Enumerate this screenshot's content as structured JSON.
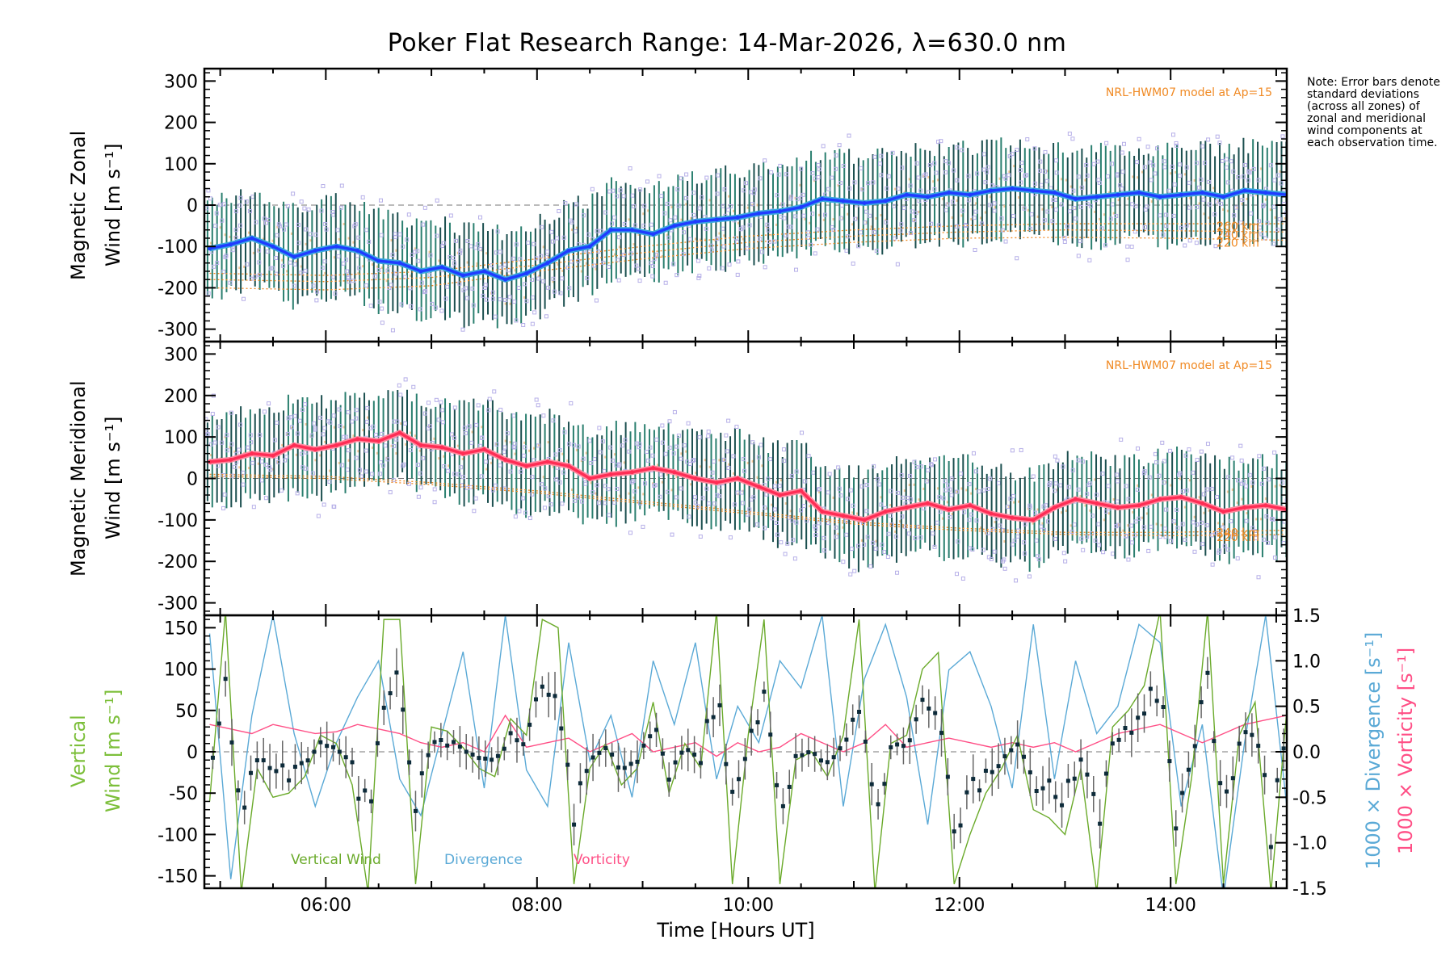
{
  "title": "Poker Flat Research Range: 14-Mar-2026, λ=630.0 nm",
  "note": "Note: Error bars denote standard deviations (across all zones) of zonal and meridional wind components at each observation time.",
  "x_axis": {
    "label": "Time [Hours UT]",
    "range_hours": [
      4.85,
      15.1
    ],
    "ticks": [
      {
        "h": 6,
        "label": "06:00"
      },
      {
        "h": 8,
        "label": "08:00"
      },
      {
        "h": 10,
        "label": "10:00"
      },
      {
        "h": 12,
        "label": "12:00"
      },
      {
        "h": 14,
        "label": "14:00"
      }
    ]
  },
  "colors": {
    "zonal": "#1f3cff",
    "zonal_outline": "#39a8e0",
    "meridional": "#ff2d55",
    "meridional_outline": "#ff8aa0",
    "vertical": "#6aaa2a",
    "divergence": "#5aa9d6",
    "vorticity": "#ff4f86",
    "model": "#f08a24",
    "scatter": "#b7b0e8",
    "errorbar": "#1b4f4f"
  },
  "chart_data": [
    {
      "type": "line",
      "name": "zonal",
      "ylabel_line1": "Magnetic Zonal",
      "ylabel_line2": "Wind [m s⁻¹]",
      "ylim": [
        -330,
        330
      ],
      "yticks": [
        -300,
        -200,
        -100,
        0,
        100,
        200,
        300
      ],
      "model_label": "NRL-HWM07 model at Ap=15",
      "model_altitudes": [
        "260 km",
        "240 km",
        "220 km"
      ],
      "series": [
        {
          "name": "Magnetic Zonal Wind",
          "x": [
            4.9,
            5.1,
            5.3,
            5.5,
            5.7,
            5.9,
            6.1,
            6.3,
            6.5,
            6.7,
            6.9,
            7.1,
            7.3,
            7.5,
            7.7,
            7.9,
            8.1,
            8.3,
            8.5,
            8.7,
            8.9,
            9.1,
            9.3,
            9.5,
            9.7,
            9.9,
            10.1,
            10.3,
            10.5,
            10.7,
            10.9,
            11.1,
            11.3,
            11.5,
            11.7,
            11.9,
            12.1,
            12.3,
            12.5,
            12.7,
            12.9,
            13.1,
            13.3,
            13.5,
            13.7,
            13.9,
            14.1,
            14.3,
            14.5,
            14.7,
            14.9,
            15.1
          ],
          "y": [
            -105,
            -95,
            -80,
            -100,
            -125,
            -110,
            -100,
            -110,
            -135,
            -140,
            -160,
            -150,
            -170,
            -160,
            -180,
            -165,
            -140,
            -110,
            -100,
            -60,
            -60,
            -70,
            -50,
            -40,
            -35,
            -30,
            -20,
            -15,
            -5,
            15,
            10,
            5,
            10,
            25,
            20,
            30,
            25,
            35,
            40,
            35,
            30,
            15,
            20,
            25,
            30,
            20,
            25,
            30,
            20,
            35,
            30,
            25
          ]
        },
        {
          "name": "HWM 260 km",
          "x": [
            4.9,
            6,
            7,
            8,
            9,
            10,
            11,
            12,
            13,
            14,
            15.1
          ],
          "y": [
            -165,
            -170,
            -160,
            -130,
            -100,
            -75,
            -60,
            -50,
            -45,
            -45,
            -45
          ]
        },
        {
          "name": "HWM 240 km",
          "x": [
            4.9,
            6,
            7,
            8,
            9,
            10,
            11,
            12,
            13,
            14,
            15.1
          ],
          "y": [
            -180,
            -185,
            -175,
            -145,
            -115,
            -90,
            -75,
            -65,
            -60,
            -62,
            -65
          ]
        },
        {
          "name": "HWM 220 km",
          "x": [
            4.9,
            6,
            7,
            8,
            9,
            10,
            11,
            12,
            13,
            14,
            15.1
          ],
          "y": [
            -200,
            -205,
            -195,
            -160,
            -130,
            -105,
            -90,
            -80,
            -78,
            -80,
            -85
          ]
        }
      ]
    },
    {
      "type": "line",
      "name": "meridional",
      "ylabel_line1": "Magnetic Meridional",
      "ylabel_line2": "Wind [m s⁻¹]",
      "ylim": [
        -330,
        330
      ],
      "yticks": [
        -300,
        -200,
        -100,
        0,
        100,
        200,
        300
      ],
      "model_label": "NRL-HWM07 model at Ap=15",
      "model_altitudes": [
        "240 km",
        "220 km"
      ],
      "series": [
        {
          "name": "Magnetic Meridional Wind",
          "x": [
            4.9,
            5.1,
            5.3,
            5.5,
            5.7,
            5.9,
            6.1,
            6.3,
            6.5,
            6.7,
            6.9,
            7.1,
            7.3,
            7.5,
            7.7,
            7.9,
            8.1,
            8.3,
            8.5,
            8.7,
            8.9,
            9.1,
            9.3,
            9.5,
            9.7,
            9.9,
            10.1,
            10.3,
            10.5,
            10.7,
            10.9,
            11.1,
            11.3,
            11.5,
            11.7,
            11.9,
            12.1,
            12.3,
            12.5,
            12.7,
            12.9,
            13.1,
            13.3,
            13.5,
            13.7,
            13.9,
            14.1,
            14.3,
            14.5,
            14.7,
            14.9,
            15.1
          ],
          "y": [
            40,
            45,
            60,
            55,
            80,
            70,
            80,
            95,
            90,
            110,
            80,
            75,
            60,
            70,
            45,
            30,
            40,
            30,
            0,
            10,
            15,
            25,
            15,
            0,
            -10,
            0,
            -20,
            -40,
            -30,
            -80,
            -90,
            -100,
            -80,
            -70,
            -60,
            -75,
            -65,
            -85,
            -95,
            -100,
            -70,
            -50,
            -60,
            -70,
            -65,
            -50,
            -45,
            -60,
            -80,
            -70,
            -65,
            -75
          ]
        },
        {
          "name": "HWM 240 km",
          "x": [
            4.9,
            6,
            7,
            8,
            9,
            10,
            11,
            12,
            13,
            14,
            15.1
          ],
          "y": [
            10,
            5,
            -10,
            -30,
            -55,
            -80,
            -105,
            -120,
            -130,
            -130,
            -125
          ]
        },
        {
          "name": "HWM 220 km",
          "x": [
            4.9,
            6,
            7,
            8,
            9,
            10,
            11,
            12,
            13,
            14,
            15.1
          ],
          "y": [
            5,
            0,
            -15,
            -35,
            -60,
            -85,
            -110,
            -125,
            -135,
            -138,
            -135
          ]
        }
      ]
    },
    {
      "type": "line",
      "name": "vertical",
      "ylabel_line1": "Vertical",
      "ylabel_line2": "Wind [m s⁻¹]",
      "ylim": [
        -165,
        165
      ],
      "yticks": [
        -150,
        -100,
        -50,
        0,
        50,
        100,
        150
      ],
      "right_axis": {
        "ylim": [
          -1.5,
          1.5
        ],
        "yticks": [
          -1.5,
          -1.0,
          -0.5,
          0.0,
          0.5,
          1.0,
          1.5
        ],
        "label_divergence": "1000 × Divergence [s⁻¹]",
        "label_vorticity": "1000 × Vorticity [s⁻¹]"
      },
      "legend": [
        "Vertical Wind",
        "Divergence",
        "Vorticity"
      ],
      "series": [
        {
          "name": "Vertical Wind",
          "x": [
            4.9,
            5.05,
            5.2,
            5.35,
            5.5,
            5.65,
            5.8,
            5.95,
            6.1,
            6.25,
            6.4,
            6.55,
            6.7,
            6.85,
            7.0,
            7.15,
            7.3,
            7.45,
            7.6,
            7.75,
            7.9,
            8.05,
            8.2,
            8.35,
            8.5,
            8.65,
            8.8,
            8.95,
            9.1,
            9.25,
            9.4,
            9.55,
            9.7,
            9.85,
            10.0,
            10.15,
            10.3,
            10.45,
            10.6,
            10.75,
            10.9,
            11.05,
            11.2,
            11.35,
            11.5,
            11.65,
            11.8,
            11.95,
            12.1,
            12.25,
            12.4,
            12.55,
            12.7,
            12.85,
            13.0,
            13.15,
            13.3,
            13.45,
            13.6,
            13.75,
            13.9,
            14.05,
            14.2,
            14.35,
            14.5,
            14.65,
            14.8,
            14.95,
            15.1
          ],
          "y": [
            -60,
            170,
            -170,
            -20,
            -55,
            -50,
            -30,
            20,
            10,
            -40,
            -170,
            160,
            160,
            -160,
            30,
            25,
            5,
            -20,
            -30,
            40,
            20,
            160,
            150,
            -160,
            -20,
            10,
            -40,
            -20,
            60,
            -50,
            10,
            -20,
            170,
            -160,
            20,
            160,
            -160,
            -10,
            0,
            -30,
            20,
            160,
            -170,
            10,
            20,
            100,
            120,
            -160,
            -100,
            -50,
            -20,
            20,
            -70,
            -80,
            -100,
            -20,
            -170,
            30,
            50,
            80,
            170,
            -160,
            -30,
            170,
            -160,
            20,
            60,
            -170,
            50
          ]
        },
        {
          "name": "Divergence",
          "x": [
            4.9,
            5.1,
            5.3,
            5.5,
            5.7,
            5.9,
            6.1,
            6.3,
            6.5,
            6.7,
            6.9,
            7.1,
            7.3,
            7.5,
            7.7,
            7.9,
            8.1,
            8.3,
            8.5,
            8.7,
            8.9,
            9.1,
            9.3,
            9.5,
            9.7,
            9.9,
            10.1,
            10.3,
            10.5,
            10.7,
            10.9,
            11.1,
            11.3,
            11.5,
            11.7,
            11.9,
            12.1,
            12.3,
            12.5,
            12.7,
            12.9,
            13.1,
            13.3,
            13.5,
            13.7,
            13.9,
            14.1,
            14.3,
            14.5,
            14.7,
            14.9,
            15.1
          ],
          "y": [
            1.3,
            -1.4,
            0.4,
            1.5,
            0.2,
            -0.6,
            0.1,
            0.6,
            1.0,
            -0.3,
            -0.7,
            0.2,
            1.1,
            -0.4,
            1.5,
            -0.2,
            -0.6,
            1.2,
            -0.1,
            0.4,
            -0.5,
            1.0,
            0.3,
            1.2,
            -0.3,
            0.5,
            0.1,
            1.0,
            0.7,
            1.5,
            -0.6,
            0.8,
            1.4,
            0.6,
            -0.8,
            0.9,
            1.1,
            0.5,
            -0.4,
            1.4,
            -0.3,
            1.0,
            0.2,
            0.5,
            1.4,
            1.2,
            -0.6,
            0.3,
            -1.6,
            0.1,
            1.5,
            -0.6
          ]
        },
        {
          "name": "Vorticity",
          "x": [
            4.9,
            5.1,
            5.3,
            5.5,
            5.7,
            5.9,
            6.1,
            6.3,
            6.5,
            6.7,
            6.9,
            7.1,
            7.3,
            7.5,
            7.7,
            7.9,
            8.1,
            8.3,
            8.5,
            8.7,
            8.9,
            9.1,
            9.3,
            9.5,
            9.7,
            9.9,
            10.1,
            10.3,
            10.5,
            10.7,
            10.9,
            11.1,
            11.3,
            11.5,
            11.7,
            11.9,
            12.1,
            12.3,
            12.5,
            12.7,
            12.9,
            13.1,
            13.3,
            13.5,
            13.7,
            13.9,
            14.1,
            14.3,
            14.5,
            14.7,
            14.9,
            15.1
          ],
          "y": [
            0.3,
            0.25,
            0.2,
            0.3,
            0.25,
            0.2,
            0.22,
            0.3,
            0.25,
            0.2,
            0.1,
            0.05,
            0.1,
            0.0,
            0.4,
            0.05,
            0.1,
            0.15,
            0.0,
            0.1,
            0.2,
            0.0,
            0.05,
            0.1,
            -0.05,
            0.1,
            0.0,
            0.05,
            0.2,
            0.1,
            0.0,
            0.1,
            0.3,
            0.05,
            0.1,
            0.15,
            0.1,
            0.05,
            0.1,
            0.05,
            0.1,
            0.0,
            0.1,
            0.2,
            0.25,
            0.3,
            0.2,
            0.1,
            0.2,
            0.3,
            0.35,
            0.4
          ]
        }
      ]
    }
  ]
}
